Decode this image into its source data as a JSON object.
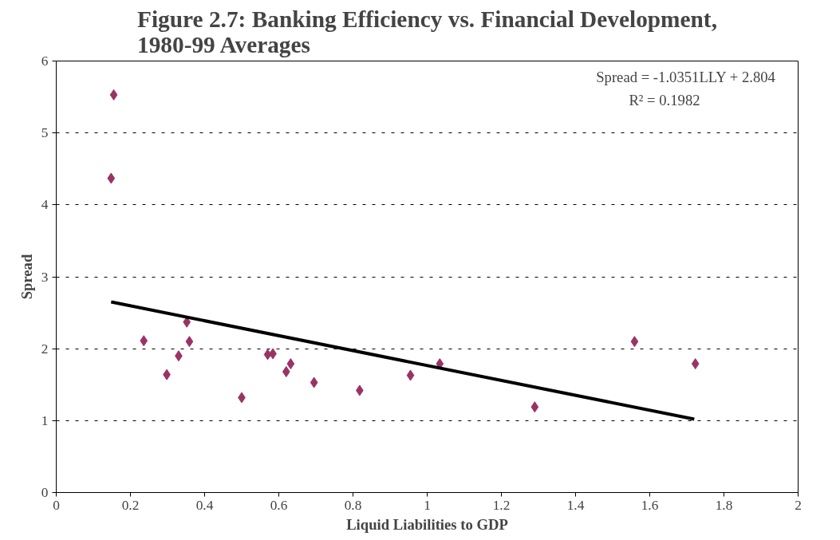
{
  "chart_data": {
    "type": "scatter",
    "title": "Figure 2.7: Banking Efficiency vs. Financial Development,\n1980-99 Averages",
    "xlabel": "Liquid Liabilities to GDP",
    "ylabel": "Spread",
    "annotations": [
      "Spread = -1.0351LLY + 2.804",
      "R² = 0.1982"
    ],
    "series": [
      {
        "color": "#993366",
        "marker": "diamond",
        "x": [
          0.155,
          0.148,
          0.236,
          0.298,
          0.33,
          0.352,
          0.359,
          0.5,
          0.57,
          0.584,
          0.62,
          0.632,
          0.695,
          0.818,
          0.955,
          1.034,
          1.29,
          1.559,
          1.723
        ],
        "values": [
          5.53,
          4.37,
          2.11,
          1.64,
          1.9,
          2.37,
          2.1,
          1.32,
          1.92,
          1.93,
          1.68,
          1.79,
          1.53,
          1.42,
          1.63,
          1.79,
          1.19,
          2.1,
          1.79
        ]
      },
      {
        "type": "line",
        "color": "#000000",
        "x": [
          0.148,
          1.72
        ],
        "values": [
          2.65,
          1.02
        ]
      }
    ],
    "xlim": [
      0,
      2
    ],
    "xticks": [
      0,
      {
        "value": 0.2,
        "label": "0.2"
      },
      {
        "value": 0.4,
        "label": "0.4"
      },
      {
        "value": 0.6,
        "label": "0.6"
      },
      {
        "value": 0.8,
        "label": "0.8"
      },
      1,
      {
        "value": 1.2,
        "label": "1.2"
      },
      {
        "value": 1.4,
        "label": "1.4"
      },
      {
        "value": 1.6,
        "label": "1.6"
      },
      {
        "value": 1.8,
        "label": "1.8"
      },
      2
    ],
    "ylim": [
      0,
      6
    ],
    "yticks": [
      0,
      1,
      2,
      3,
      4,
      5,
      6
    ],
    "grid": "y"
  }
}
